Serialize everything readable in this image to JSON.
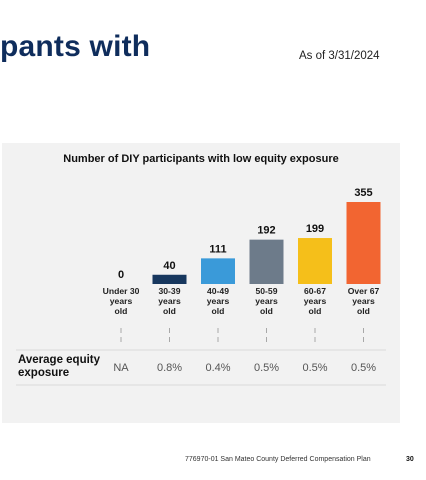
{
  "header": {
    "headline": "pants with",
    "as_of": "As of 3/31/2024"
  },
  "chart_data": {
    "type": "bar",
    "title": "Number of DIY participants with low equity exposure",
    "categories": [
      [
        "Under 30",
        "years",
        "old"
      ],
      [
        "30-39",
        "years",
        "old"
      ],
      [
        "40-49",
        "years",
        "old"
      ],
      [
        "50-59",
        "years",
        "old"
      ],
      [
        "60-67",
        "years",
        "old"
      ],
      [
        "Over 67",
        "years",
        "old"
      ]
    ],
    "values": [
      0,
      40,
      111,
      192,
      199,
      355
    ],
    "value_labels": [
      "0",
      "40",
      "111",
      "192",
      "199",
      "355"
    ],
    "colors": [
      "#17375e",
      "#17375e",
      "#3a9ad9",
      "#6d7b8a",
      "#f5bf1a",
      "#f26531"
    ],
    "ylim": [
      0,
      355
    ],
    "grid": false,
    "legend": "none"
  },
  "table": {
    "row_label": "Average equity exposure",
    "values": [
      "NA",
      "0.8%",
      "0.4%",
      "0.5%",
      "0.5%",
      "0.5%"
    ]
  },
  "footer": {
    "text": "776970-01 San Mateo County Deferred Compensation Plan",
    "page": "30"
  }
}
